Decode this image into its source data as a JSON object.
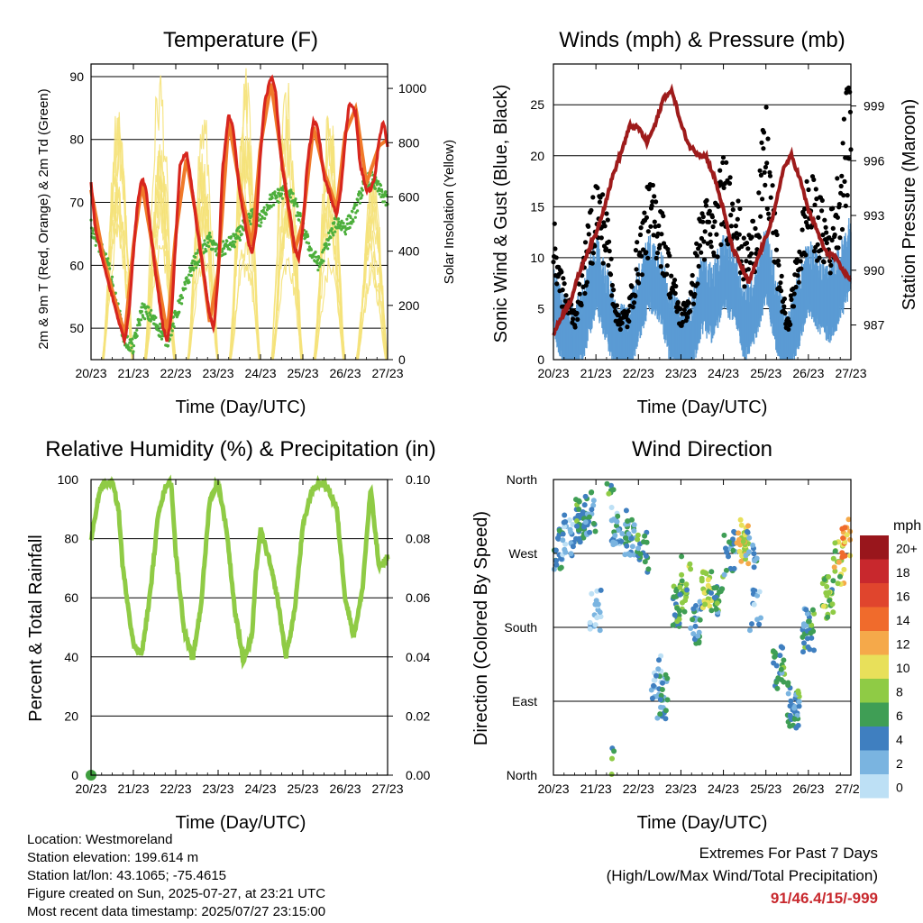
{
  "x_tick_labels": [
    "20/23",
    "21/23",
    "22/23",
    "23/23",
    "24/23",
    "25/23",
    "26/23",
    "27/23"
  ],
  "xlabel": "Time (Day/UTC)",
  "colors": {
    "temp_2m": "#d7261e",
    "temp_9m": "#f07a2a",
    "dewpoint": "#4daf3c",
    "solar": "#f5e27a",
    "wind": "#5a9bd4",
    "gust": "#000000",
    "pressure": "#9e1b1b",
    "rh": "#8fcb45",
    "precip": "#3f9e3f"
  },
  "chart_data": [
    {
      "id": "temperature",
      "type": "line",
      "title": "Temperature (F)",
      "xlabel": "Time (Day/UTC)",
      "ylabel": "2m & 9m T (Red, Orange) & 2m Td (Green)",
      "ylabel_right": "Solar Insolation (Yellow)",
      "x_range_days": [
        0,
        7
      ],
      "ylim": [
        45,
        92
      ],
      "yticks": [
        50,
        60,
        70,
        80,
        90
      ],
      "ylim_right": [
        0,
        1090
      ],
      "yticks_right": [
        0,
        200,
        400,
        600,
        800,
        1000
      ],
      "series": [
        {
          "role": "2m T",
          "axis": "left",
          "x": [
            0,
            0.1,
            0.3,
            0.5,
            0.7,
            0.8,
            0.9,
            1.0,
            1.1,
            1.2,
            1.3,
            1.5,
            1.7,
            1.8,
            1.9,
            2.0,
            2.1,
            2.25,
            2.35,
            2.5,
            2.7,
            2.8,
            2.9,
            3.0,
            3.1,
            3.25,
            3.35,
            3.5,
            3.7,
            3.8,
            3.9,
            4.0,
            4.1,
            4.25,
            4.35,
            4.5,
            4.7,
            4.8,
            4.9,
            5.0,
            5.1,
            5.25,
            5.35,
            5.5,
            5.7,
            5.8,
            5.9,
            6.0,
            6.1,
            6.25,
            6.35,
            6.5,
            6.6,
            6.7,
            6.8,
            6.9,
            7.0
          ],
          "y": [
            73,
            66,
            60,
            55,
            50,
            48,
            53,
            62,
            70,
            74,
            72,
            60,
            50,
            48,
            52,
            64,
            76,
            78,
            74,
            66,
            57,
            52,
            50,
            58,
            75,
            84,
            82,
            72,
            64,
            62,
            66,
            78,
            86,
            90,
            88,
            76,
            68,
            63,
            61,
            66,
            76,
            83,
            82,
            74,
            70,
            68,
            72,
            80,
            86,
            84,
            76,
            72,
            72,
            74,
            80,
            83,
            79
          ]
        },
        {
          "role": "9m T",
          "axis": "left",
          "x": [
            0,
            0.3,
            0.5,
            0.8,
            1.0,
            1.2,
            1.5,
            1.8,
            2.0,
            2.25,
            2.5,
            2.8,
            3.0,
            3.25,
            3.5,
            3.8,
            4.0,
            4.25,
            4.5,
            4.8,
            5.0,
            5.25,
            5.5,
            5.8,
            6.0,
            6.25,
            6.5,
            6.8,
            7.0
          ],
          "y": [
            72,
            61,
            56,
            49,
            63,
            73,
            61,
            49,
            65,
            77,
            67,
            51,
            59,
            83,
            73,
            63,
            79,
            89,
            77,
            62,
            67,
            82,
            75,
            69,
            81,
            85,
            73,
            79,
            80
          ]
        },
        {
          "role": "2m Td",
          "axis": "left",
          "x": [
            0,
            0.2,
            0.4,
            0.6,
            0.8,
            1.0,
            1.2,
            1.4,
            1.6,
            1.8,
            2.0,
            2.2,
            2.4,
            2.6,
            2.8,
            3.0,
            3.2,
            3.4,
            3.6,
            3.8,
            4.0,
            4.2,
            4.4,
            4.6,
            4.8,
            5.0,
            5.2,
            5.4,
            5.6,
            5.8,
            6.0,
            6.2,
            6.4,
            6.6,
            6.8,
            7.0
          ],
          "y": [
            66,
            63,
            60,
            54,
            48,
            47,
            53,
            52,
            50,
            48,
            52,
            56,
            60,
            62,
            64,
            62,
            63,
            64,
            66,
            68,
            67,
            70,
            71,
            72,
            70,
            66,
            62,
            60,
            64,
            67,
            66,
            68,
            72,
            74,
            72,
            70
          ]
        },
        {
          "role": "Solar",
          "axis": "right",
          "days": [
            {
              "start": 0.28,
              "peak": 0.63,
              "end": 0.98,
              "max": 1040
            },
            {
              "start": 1.28,
              "peak": 1.63,
              "end": 1.98,
              "max": 1030
            },
            {
              "start": 2.28,
              "peak": 2.63,
              "end": 2.98,
              "max": 1000
            },
            {
              "start": 3.28,
              "peak": 3.63,
              "end": 3.98,
              "max": 980
            },
            {
              "start": 4.28,
              "peak": 4.63,
              "end": 4.98,
              "max": 950
            },
            {
              "start": 5.28,
              "peak": 5.63,
              "end": 5.98,
              "max": 940
            },
            {
              "start": 6.28,
              "peak": 6.63,
              "end": 6.98,
              "max": 700
            }
          ]
        }
      ]
    },
    {
      "id": "winds",
      "type": "line",
      "title": "Winds (mph) & Pressure (mb)",
      "xlabel": "Time (Day/UTC)",
      "ylabel": "Sonic Wind & Gust (Blue, Black)",
      "ylabel_right": "Station Pressure (Maroon)",
      "x_range_days": [
        0,
        7
      ],
      "ylim": [
        0,
        29
      ],
      "yticks": [
        0,
        5,
        10,
        15,
        20,
        25
      ],
      "ylim_right": [
        985.1,
        1001.3
      ],
      "yticks_right": [
        987,
        990,
        993,
        996,
        999
      ],
      "series": [
        {
          "role": "Sonic Wind",
          "axis": "left",
          "x": [
            0,
            0.25,
            0.5,
            0.75,
            1.0,
            1.25,
            1.5,
            1.75,
            2.0,
            2.25,
            2.5,
            2.75,
            3.0,
            3.25,
            3.5,
            3.75,
            4.0,
            4.25,
            4.5,
            4.75,
            5.0,
            5.25,
            5.5,
            5.75,
            6.0,
            6.25,
            6.5,
            6.75,
            7.0
          ],
          "y": [
            7,
            3,
            2,
            5,
            9,
            6,
            2,
            2,
            6,
            9,
            8,
            4,
            2,
            3,
            7,
            6,
            9,
            8,
            4,
            6,
            10,
            5,
            1,
            5,
            9,
            7,
            6,
            8,
            11
          ]
        },
        {
          "role": "Gust",
          "axis": "left",
          "x": [
            0,
            0.25,
            0.5,
            0.75,
            1.0,
            1.25,
            1.5,
            1.75,
            2.0,
            2.25,
            2.5,
            2.75,
            3.0,
            3.25,
            3.5,
            3.75,
            4.0,
            4.25,
            4.5,
            4.75,
            5.0,
            5.25,
            5.5,
            5.75,
            6.0,
            6.25,
            6.5,
            6.75,
            7.0
          ],
          "y": [
            11,
            6,
            4,
            9,
            15,
            12,
            4,
            4,
            10,
            14,
            13,
            8,
            4,
            6,
            13,
            12,
            16,
            15,
            9,
            12,
            20,
            10,
            3,
            9,
            15,
            13,
            11,
            16,
            24
          ]
        },
        {
          "role": "Station Pressure",
          "axis": "right",
          "x": [
            0,
            0.2,
            0.4,
            0.6,
            0.8,
            1.0,
            1.2,
            1.4,
            1.6,
            1.8,
            2.0,
            2.2,
            2.4,
            2.6,
            2.8,
            3.0,
            3.2,
            3.4,
            3.6,
            3.8,
            4.0,
            4.2,
            4.4,
            4.6,
            4.8,
            5.0,
            5.2,
            5.4,
            5.6,
            5.8,
            6.0,
            6.2,
            6.4,
            6.6,
            6.8,
            7.0
          ],
          "y": [
            986.5,
            987.5,
            988.3,
            989.8,
            991.0,
            992.0,
            993.5,
            995.2,
            996.5,
            997.9,
            997.8,
            997.0,
            998.0,
            999.5,
            999.8,
            998.0,
            996.8,
            996.4,
            996.2,
            995.0,
            993.3,
            991.3,
            990.3,
            989.3,
            990.6,
            991.8,
            993.2,
            995.5,
            996.3,
            995.0,
            993.3,
            992.2,
            991.0,
            990.8,
            990.0,
            989.5
          ]
        }
      ]
    },
    {
      "id": "humidity",
      "type": "line",
      "title": "Relative Humidity (%) & Precipitation (in)",
      "xlabel": "Time (Day/UTC)",
      "ylabel": "Percent & Total Rainfall",
      "x_range_days": [
        0,
        7
      ],
      "ylim": [
        0,
        100
      ],
      "yticks": [
        0,
        20,
        40,
        60,
        80,
        100
      ],
      "ylim_right": [
        0,
        0.1
      ],
      "yticks_right": [
        "0.00",
        "0.02",
        "0.04",
        "0.06",
        "0.08",
        "0.10"
      ],
      "series": [
        {
          "role": "Relative Humidity",
          "axis": "left",
          "x": [
            0,
            0.1,
            0.2,
            0.35,
            0.5,
            0.65,
            0.75,
            0.85,
            1.0,
            1.2,
            1.4,
            1.6,
            1.8,
            1.9,
            2.0,
            2.2,
            2.4,
            2.6,
            2.8,
            3.0,
            3.2,
            3.4,
            3.6,
            3.8,
            3.9,
            4.0,
            4.2,
            4.4,
            4.6,
            4.8,
            5.0,
            5.2,
            5.4,
            5.6,
            5.8,
            6.0,
            6.2,
            6.4,
            6.6,
            6.8,
            7.0
          ],
          "y": [
            79,
            88,
            96,
            99,
            99,
            90,
            70,
            60,
            44,
            41,
            62,
            90,
            99,
            98,
            75,
            49,
            39,
            58,
            93,
            99,
            83,
            55,
            39,
            47,
            70,
            83,
            73,
            60,
            40,
            55,
            84,
            96,
            99,
            97,
            90,
            60,
            47,
            62,
            97,
            70,
            74
          ]
        },
        {
          "role": "Precipitation",
          "axis": "right",
          "x": [
            0
          ],
          "y": [
            0
          ]
        }
      ]
    },
    {
      "id": "direction",
      "type": "scatter",
      "title": "Wind Direction",
      "xlabel": "Time (Day/UTC)",
      "ylabel": "Direction (Colored By Speed)",
      "x_range_days": [
        0,
        7
      ],
      "yticks": [
        "North",
        "East",
        "South",
        "West",
        "North"
      ],
      "colorbar": {
        "unit": "mph",
        "labels": [
          "20+",
          "18",
          "16",
          "14",
          "12",
          "10",
          "8",
          "6",
          "4",
          "2",
          "0"
        ],
        "colors": [
          "#99161c",
          "#c8282d",
          "#e0452d",
          "#f06b2c",
          "#f5a94a",
          "#e8e05a",
          "#8fcb45",
          "#3f9e55",
          "#3f7fc0",
          "#7ab4e0",
          "#bde0f5"
        ]
      },
      "clusters": [
        {
          "x": 0.1,
          "dir": 275,
          "speed": 4,
          "n": 18
        },
        {
          "x": 0.35,
          "dir": 290,
          "speed": 2,
          "n": 22
        },
        {
          "x": 0.65,
          "dir": 310,
          "speed": 6,
          "n": 36
        },
        {
          "x": 0.85,
          "dir": 320,
          "speed": 4,
          "n": 22
        },
        {
          "x": 1.0,
          "dir": 200,
          "speed": 1,
          "n": 20
        },
        {
          "x": 1.3,
          "dir": 10,
          "speed": 6,
          "n": 10
        },
        {
          "x": 1.5,
          "dir": 300,
          "speed": 3,
          "n": 24
        },
        {
          "x": 1.8,
          "dir": 295,
          "speed": 4,
          "n": 30
        },
        {
          "x": 2.1,
          "dir": 270,
          "speed": 5,
          "n": 20
        },
        {
          "x": 2.4,
          "dir": 120,
          "speed": 2,
          "n": 16
        },
        {
          "x": 2.55,
          "dir": 95,
          "speed": 4,
          "n": 24
        },
        {
          "x": 2.95,
          "dir": 205,
          "speed": 6,
          "n": 28
        },
        {
          "x": 3.1,
          "dir": 240,
          "speed": 7,
          "n": 18
        },
        {
          "x": 3.35,
          "dir": 185,
          "speed": 4,
          "n": 24
        },
        {
          "x": 3.6,
          "dir": 230,
          "speed": 8,
          "n": 26
        },
        {
          "x": 3.85,
          "dir": 215,
          "speed": 5,
          "n": 24
        },
        {
          "x": 4.15,
          "dir": 270,
          "speed": 4,
          "n": 20
        },
        {
          "x": 4.45,
          "dir": 285,
          "speed": 10,
          "n": 30
        },
        {
          "x": 4.65,
          "dir": 275,
          "speed": 3,
          "n": 14
        },
        {
          "x": 4.75,
          "dir": 200,
          "speed": 2,
          "n": 14
        },
        {
          "x": 5.3,
          "dir": 130,
          "speed": 5,
          "n": 24
        },
        {
          "x": 5.65,
          "dir": 85,
          "speed": 5,
          "n": 40
        },
        {
          "x": 6.0,
          "dir": 175,
          "speed": 5,
          "n": 34
        },
        {
          "x": 6.45,
          "dir": 215,
          "speed": 7,
          "n": 26
        },
        {
          "x": 6.7,
          "dir": 260,
          "speed": 9,
          "n": 20
        },
        {
          "x": 6.9,
          "dir": 285,
          "speed": 12,
          "n": 16
        }
      ]
    }
  ],
  "footer": {
    "location": "Location: Westmoreland",
    "elevation": "Station elevation: 199.614 m",
    "latlon": "Station lat/lon: 43.1065; -75.4615",
    "created": "Figure created on Sun, 2025-07-27, at 23:21 UTC",
    "timestamp": "Most recent data timestamp: 2025/07/27 23:15:00"
  },
  "extremes": {
    "title": "Extremes For Past 7 Days",
    "subtitle": "(High/Low/Max Wind/Total Precipitation)",
    "values": "91/46.4/15/-999"
  }
}
